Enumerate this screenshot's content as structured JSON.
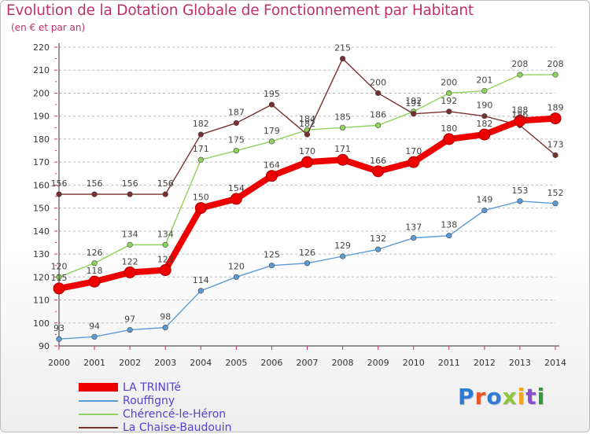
{
  "header": {
    "title": "Evolution de la Dotation Globale de Fonctionnement par Habitant",
    "subtitle": "(en € et par an)"
  },
  "logo": {
    "text": "Proxiti",
    "colors": [
      "#2e7bd6",
      "#e8562a",
      "#2e7bd6",
      "#8cc63f",
      "#f0a51a",
      "#8a4fd1",
      "#2e9a3a"
    ]
  },
  "chart_data": {
    "type": "line",
    "title": "Evolution de la Dotation Globale de Fonctionnement par Habitant",
    "subtitle": "(en € et par an)",
    "xlabel": "",
    "ylabel": "",
    "x": [
      2000,
      2001,
      2002,
      2003,
      2004,
      2005,
      2006,
      2007,
      2008,
      2009,
      2010,
      2011,
      2012,
      2013,
      2014
    ],
    "ylim": [
      90,
      220
    ],
    "yticks": [
      90,
      100,
      110,
      120,
      130,
      140,
      150,
      160,
      170,
      180,
      190,
      200,
      210,
      220
    ],
    "grid": "horizontal dashed",
    "legend_position": "bottom-left",
    "series": [
      {
        "name": "LA TRINITé",
        "color": "#ee0000",
        "emphasis": true,
        "values": [
          115,
          118,
          122,
          123,
          150,
          154,
          164,
          170,
          171,
          166,
          170,
          180,
          182,
          188,
          189
        ]
      },
      {
        "name": "Rouffigny",
        "color": "#5b9bd5",
        "emphasis": false,
        "values": [
          93,
          94,
          97,
          98,
          114,
          120,
          125,
          126,
          129,
          132,
          137,
          138,
          149,
          153,
          152
        ]
      },
      {
        "name": "Chérencé-le-Héron",
        "color": "#8ed35c",
        "emphasis": false,
        "values": [
          120,
          126,
          134,
          134,
          171,
          175,
          179,
          184,
          185,
          186,
          192,
          200,
          201,
          208,
          208
        ]
      },
      {
        "name": "La Chaise-Baudouin",
        "color": "#7a2f2f",
        "emphasis": false,
        "values": [
          156,
          156,
          156,
          156,
          182,
          187,
          195,
          182,
          215,
          200,
          191,
          192,
          190,
          186,
          173
        ]
      }
    ]
  }
}
